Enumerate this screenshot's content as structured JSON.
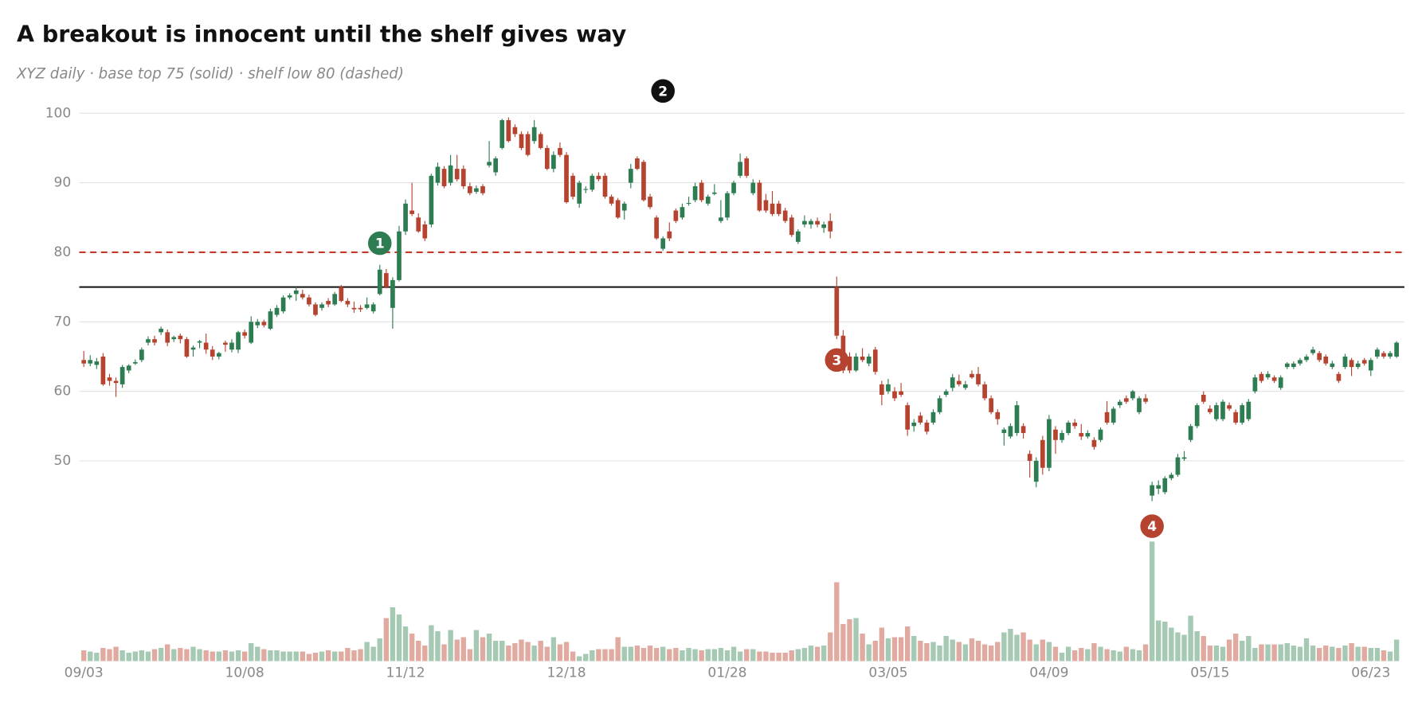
{
  "chart_data": {
    "type": "candlestick",
    "title": "A breakout is innocent until the shelf gives way",
    "subtitle": "XYZ daily · base top 75 (solid) · shelf low 80 (dashed)",
    "categories": [
      "09/03",
      null,
      null,
      null,
      null,
      null,
      null,
      null,
      null,
      null,
      null,
      null,
      null,
      null,
      null,
      null,
      null,
      null,
      null,
      null,
      null,
      null,
      null,
      null,
      null,
      "10/08",
      null,
      null,
      null,
      null,
      null,
      null,
      null,
      null,
      null,
      null,
      null,
      null,
      null,
      null,
      null,
      null,
      null,
      null,
      null,
      null,
      null,
      null,
      null,
      null,
      "11/12",
      null,
      null,
      null,
      null,
      null,
      null,
      null,
      null,
      null,
      null,
      null,
      null,
      null,
      null,
      null,
      null,
      null,
      null,
      null,
      null,
      null,
      null,
      null,
      null,
      "12/18",
      null,
      null,
      null,
      null,
      null,
      null,
      null,
      null,
      null,
      null,
      null,
      null,
      null,
      null,
      null,
      null,
      null,
      null,
      null,
      null,
      null,
      null,
      null,
      null,
      "01/28",
      null,
      null,
      null,
      null,
      null,
      null,
      null,
      null,
      null,
      null,
      null,
      null,
      null,
      null,
      null,
      null,
      null,
      null,
      null,
      null,
      null,
      null,
      null,
      null,
      "03/05",
      null,
      null,
      null,
      null,
      null,
      null,
      null,
      null,
      null,
      null,
      null,
      null,
      null,
      null,
      null,
      null,
      null,
      null,
      null,
      null,
      null,
      null,
      null,
      null,
      "04/09",
      null,
      null,
      null,
      null,
      null,
      null,
      null,
      null,
      null,
      null,
      null,
      null,
      null,
      null,
      null,
      null,
      null,
      null,
      null,
      null,
      null,
      null,
      null,
      null,
      "05/15",
      null,
      null,
      null,
      null,
      null,
      null,
      null,
      null,
      null,
      null,
      null,
      null,
      null,
      null,
      null,
      null,
      null,
      null,
      null,
      null,
      null,
      null,
      null,
      null,
      "06/23",
      null,
      null,
      null,
      null
    ],
    "open": [
      64.5,
      64,
      63.8,
      65,
      62,
      61.5,
      61,
      63,
      64,
      64.5,
      67,
      67.5,
      68.5,
      68.5,
      67.5,
      68,
      67.5,
      66,
      67,
      67,
      66,
      65,
      67,
      66,
      66,
      68.5,
      67,
      69.5,
      70,
      69,
      71,
      71.5,
      73.5,
      74,
      74,
      73.5,
      72.5,
      72,
      73,
      72.5,
      75,
      73,
      72,
      72,
      72,
      71.5,
      74,
      77,
      72,
      76,
      83,
      86,
      85,
      84,
      84,
      90,
      92,
      90,
      92,
      92,
      89.5,
      88.7,
      89.5,
      92.5,
      91.5,
      95,
      99,
      98,
      97,
      97,
      96,
      97,
      95,
      92,
      95,
      94,
      91,
      87,
      89,
      89,
      91,
      91,
      88,
      87.5,
      86,
      90,
      93.5,
      93,
      88,
      85,
      80.5,
      83,
      86,
      85,
      87,
      87.5,
      90,
      87,
      88.4,
      84.5,
      85,
      88.5,
      91,
      93.5,
      88.5,
      90,
      87.5,
      87,
      87,
      86,
      85,
      81.5,
      84,
      84,
      84.5,
      83.5,
      84.5,
      75,
      68,
      65,
      63,
      65,
      64,
      66,
      61,
      60,
      60,
      60,
      58,
      55,
      56.5,
      55.5,
      55.5,
      57,
      59.5,
      60.5,
      61.5,
      60.5,
      62.5,
      62.5,
      61,
      59,
      57,
      54,
      53.5,
      54,
      55,
      51,
      47,
      53,
      49,
      54.5,
      53,
      54,
      55.5,
      54,
      53.5,
      53,
      53,
      57,
      55.5,
      58,
      59,
      59,
      57,
      59,
      45,
      46,
      45.5,
      47.5,
      48,
      50.3,
      53,
      55,
      59.5,
      57.5,
      56,
      56,
      58,
      57,
      55.5,
      56,
      60,
      62.5,
      62,
      62,
      60.5,
      63.5,
      63.5,
      64,
      64.5,
      65.5,
      65.5,
      65,
      63.5,
      62.5,
      63.5,
      64.5,
      63.5,
      64.5,
      63,
      65,
      65.5,
      65,
      65
    ],
    "high": [
      65.8,
      65.2,
      64.8,
      65.5,
      62.5,
      62,
      63.8,
      63.9,
      64.6,
      66.3,
      67.9,
      68,
      69.3,
      68.9,
      68,
      68.3,
      67.8,
      66.6,
      67.4,
      68.3,
      66.5,
      65.7,
      67.3,
      67.5,
      68.7,
      68.9,
      70.8,
      70.4,
      70.3,
      71.9,
      72.4,
      73.8,
      74.1,
      75,
      74.6,
      73.9,
      72.8,
      72.8,
      73.4,
      74.3,
      75.3,
      73.4,
      72.9,
      72.4,
      73.5,
      72.8,
      78.2,
      77.6,
      76.4,
      83.8,
      87.6,
      90,
      85.6,
      84.5,
      91.3,
      92.9,
      92.4,
      94,
      94,
      92.5,
      90,
      89.6,
      89.8,
      96,
      93.8,
      99.2,
      99.4,
      98.4,
      97.4,
      97.4,
      99,
      97.3,
      95.4,
      94.5,
      95.8,
      94.4,
      91.4,
      90.3,
      89.5,
      91.3,
      91.5,
      91.4,
      88.3,
      87.8,
      87.3,
      92.7,
      93.8,
      93.3,
      88.4,
      85.3,
      82.3,
      84.3,
      86.3,
      87,
      88,
      90,
      90.4,
      88.3,
      89.8,
      87.5,
      88.8,
      90.3,
      94.2,
      93.8,
      90.5,
      90.4,
      88.4,
      88.8,
      87.4,
      86.4,
      85.4,
      83.3,
      85.3,
      84.8,
      85,
      84.4,
      85.6,
      76.5,
      68.8,
      65.6,
      65.5,
      66.2,
      65.4,
      66.4,
      61.5,
      61.8,
      60.6,
      61.2,
      58.4,
      56,
      57,
      55.9,
      57.4,
      59.4,
      60.3,
      62.5,
      62.4,
      61.5,
      63,
      63.5,
      61.4,
      59.4,
      57.4,
      54.8,
      55.4,
      58.6,
      55.4,
      51.5,
      50.5,
      53.6,
      56.6,
      55,
      54.4,
      55.8,
      56,
      55.3,
      54.4,
      53.4,
      54.8,
      58.6,
      57.8,
      58.8,
      59.4,
      60.2,
      59.3,
      59.6,
      47,
      47.2,
      47.8,
      48.3,
      51,
      51.4,
      55.3,
      58.3,
      60,
      58,
      58.4,
      58.8,
      58.4,
      57.4,
      58.3,
      58.9,
      62.4,
      62.8,
      62.9,
      62.3,
      62.3,
      64.2,
      64.3,
      64.8,
      65.3,
      66.4,
      65.8,
      65.3,
      64.4,
      62.8,
      65.4,
      64.8,
      64.4,
      64.8,
      64.8,
      66.3,
      65.8,
      65.8,
      67.2
    ],
    "low": [
      63.5,
      63.6,
      63.2,
      60.8,
      60.8,
      59.2,
      60.5,
      62.6,
      63.8,
      64.2,
      66.6,
      66.6,
      68.1,
      66.5,
      67.1,
      66.9,
      64.8,
      65,
      66.2,
      65.4,
      64.5,
      64.6,
      65.7,
      65.6,
      65.5,
      67.6,
      66.8,
      69.1,
      69.2,
      68.8,
      70.7,
      71.2,
      73.2,
      73,
      73.2,
      72.2,
      70.8,
      71.6,
      72.1,
      72.3,
      72.8,
      72.1,
      71.3,
      71.4,
      71.8,
      71.2,
      73.8,
      74.8,
      69,
      75.8,
      82.5,
      85.2,
      82.8,
      81.6,
      83.6,
      89.6,
      89.2,
      89.6,
      90.2,
      89.1,
      88.2,
      88.4,
      88.2,
      92.2,
      91,
      94.8,
      95.8,
      96.6,
      94.7,
      93.8,
      95.6,
      94.8,
      91.8,
      91.5,
      93.7,
      87,
      87.6,
      86.4,
      88.5,
      88.7,
      90.2,
      87.7,
      86.7,
      84.8,
      84.7,
      89.2,
      91.8,
      87.3,
      86.2,
      81.8,
      80.2,
      81.6,
      84.2,
      84.7,
      86.7,
      87.2,
      87.2,
      86.7,
      88.2,
      84.2,
      84.6,
      88.2,
      90.7,
      90.7,
      88.2,
      85.8,
      85.7,
      85.2,
      85.2,
      84.2,
      82.2,
      81.2,
      83.6,
      83.4,
      83.6,
      82.8,
      82,
      67.5,
      62.6,
      62.6,
      62.8,
      64.2,
      63.6,
      62.4,
      58,
      59.6,
      58.6,
      59.2,
      53.6,
      54.2,
      55.2,
      53.8,
      55.2,
      56.7,
      59.2,
      60,
      60.7,
      60.2,
      61.8,
      60.7,
      58.7,
      56.7,
      55.2,
      52.2,
      53.2,
      53.6,
      53.2,
      47.6,
      46.2,
      48,
      48.5,
      51,
      52.6,
      53.7,
      54.6,
      53,
      53.2,
      51.6,
      52.7,
      55.2,
      55.2,
      57.6,
      58.2,
      58.7,
      56.7,
      58.2,
      44.2,
      45.2,
      45.2,
      47.2,
      47.7,
      50,
      52.7,
      54.7,
      58.2,
      56.7,
      55.7,
      55.7,
      57.2,
      55.2,
      55.2,
      55.7,
      59.7,
      61.2,
      61.7,
      61.2,
      60.2,
      63.2,
      63.2,
      63.7,
      64.2,
      65.2,
      64.2,
      63.7,
      63.2,
      61.2,
      63.2,
      62.2,
      63.2,
      63.7,
      62.2,
      64.7,
      64.7,
      64.7,
      64.8
    ],
    "close": [
      64,
      64.5,
      64.3,
      61,
      61.5,
      61.2,
      63.5,
      63.7,
      64.2,
      66,
      67.5,
      67,
      69,
      67,
      67.8,
      67.5,
      65,
      66.3,
      67.2,
      66,
      65,
      65.5,
      66.7,
      67,
      68.5,
      68,
      70,
      70,
      69.5,
      71.5,
      72,
      73.5,
      73.8,
      74.5,
      73.5,
      72.5,
      71,
      72.5,
      72.5,
      74,
      73,
      72.5,
      71.8,
      71.8,
      72.5,
      72.5,
      77.5,
      75,
      76,
      83,
      87,
      85.5,
      83,
      82,
      91,
      92.3,
      89.5,
      92.5,
      90.5,
      89.5,
      88.5,
      89.2,
      88.5,
      93,
      93.5,
      99,
      96,
      97,
      95,
      94,
      98,
      95,
      92,
      94,
      94,
      87.2,
      88,
      90,
      89.1,
      91,
      90.5,
      88,
      87,
      85,
      87,
      92,
      92,
      87.5,
      86.5,
      82,
      82,
      82,
      84.5,
      86.5,
      87.1,
      89.5,
      87.5,
      88,
      88.6,
      85,
      88.5,
      90,
      93,
      91,
      90,
      86,
      86,
      85.5,
      85.5,
      84.5,
      82.5,
      83,
      84.5,
      84.5,
      84,
      84,
      83,
      68,
      63,
      63,
      65,
      64.5,
      65,
      62.8,
      59.5,
      61,
      59,
      59.5,
      54.5,
      55.5,
      55.5,
      54.2,
      57,
      59,
      60,
      62,
      61,
      61,
      62,
      61,
      59,
      57,
      56,
      54.5,
      55,
      58,
      54,
      50,
      50,
      49,
      56,
      53,
      54,
      55.5,
      55,
      53.5,
      54,
      52,
      54.5,
      55.5,
      57.5,
      58.5,
      58.5,
      60,
      59,
      58.5,
      46.5,
      46.5,
      47.5,
      48,
      50.5,
      50.5,
      55,
      58,
      58.5,
      57,
      58,
      58.5,
      57.5,
      55.5,
      58,
      58.5,
      62,
      61.5,
      62.5,
      61.5,
      62,
      64,
      64,
      64.5,
      65,
      66,
      64.5,
      64,
      64,
      61.5,
      65,
      63.5,
      64,
      64,
      64.5,
      66,
      65,
      65.5,
      67
    ],
    "volume": [
      9,
      8,
      7,
      11,
      10,
      12,
      9,
      7,
      8,
      9,
      8,
      10,
      11,
      14,
      10,
      11,
      10,
      12,
      10,
      9,
      8,
      8,
      9,
      8,
      9,
      8,
      15,
      12,
      10,
      9,
      9,
      8,
      8,
      8,
      8,
      6,
      7,
      8,
      9,
      8,
      8,
      11,
      9,
      10,
      16,
      12,
      19,
      36,
      45,
      39,
      29,
      23,
      17,
      13,
      30,
      25,
      14,
      26,
      18,
      20,
      10,
      26,
      20,
      23,
      17,
      17,
      13,
      15,
      18,
      16,
      13,
      17,
      12,
      20,
      14,
      16,
      8,
      4,
      6,
      9,
      10,
      10,
      10,
      20,
      12,
      12,
      13,
      11,
      13,
      11,
      12,
      10,
      11,
      9,
      11,
      10,
      9,
      10,
      10,
      11,
      9,
      12,
      8,
      10,
      10,
      8,
      8,
      7,
      7,
      7,
      9,
      10,
      11,
      13,
      12,
      13,
      24,
      66,
      31,
      35,
      36,
      23,
      14,
      17,
      28,
      19,
      20,
      20,
      29,
      21,
      17,
      15,
      16,
      13,
      21,
      18,
      16,
      14,
      19,
      17,
      14,
      13,
      16,
      24,
      27,
      22,
      24,
      18,
      14,
      18,
      16,
      12,
      7,
      12,
      9,
      11,
      10,
      15,
      12,
      10,
      9,
      8,
      12,
      10,
      9,
      14,
      100,
      34,
      33,
      28,
      24,
      22,
      38,
      25,
      21,
      13,
      13,
      12,
      18,
      23,
      17,
      21,
      11,
      14,
      14,
      14,
      14,
      15,
      13,
      12,
      19,
      13,
      11,
      13,
      12,
      11,
      13,
      15,
      12,
      12,
      11,
      11,
      9,
      8,
      18
    ],
    "ylim": [
      38,
      103
    ],
    "yticks": [
      50,
      60,
      70,
      80,
      90,
      100
    ],
    "volume_ylim": [
      0,
      100
    ],
    "grid": true,
    "up_color": "#2e7d52",
    "down_color": "#b5432f",
    "volume_up_color": "#a5c9b3",
    "volume_down_color": "#e0aaa1",
    "reference_lines": [
      {
        "value": 75,
        "style": "solid",
        "color": "#111111"
      },
      {
        "value": 80,
        "style": "dashed",
        "color": "#c0392b"
      }
    ],
    "annotations": [
      {
        "label": "1",
        "index": 46,
        "y": 81.3,
        "color": "#2e7d52"
      },
      {
        "label": "2",
        "index": 90,
        "y": 103.2,
        "color": "#111111"
      },
      {
        "label": "3",
        "index": 117,
        "y": 64.5,
        "color": "#b5432f"
      },
      {
        "label": "4",
        "index": 166,
        "y": 40.6,
        "color": "#b5432f"
      }
    ]
  }
}
